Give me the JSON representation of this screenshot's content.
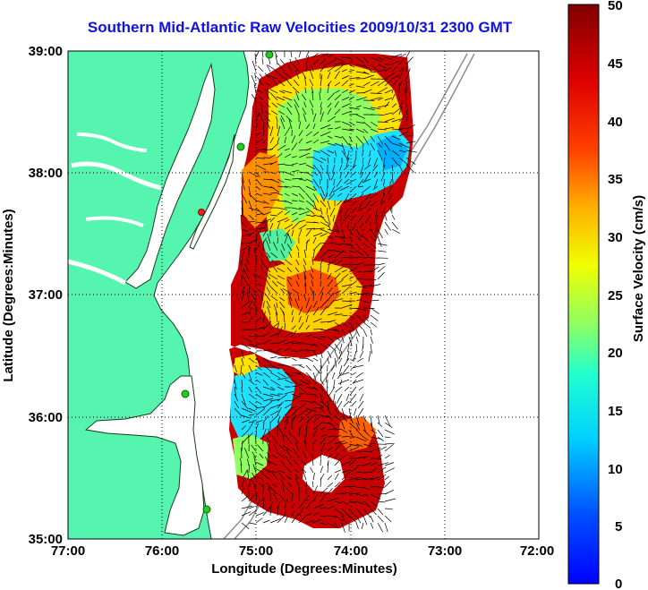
{
  "title": "Southern Mid-Atlantic Raw Velocities 2009/10/31 2300 GMT",
  "axes": {
    "xlabel": "Longitude (Degrees:Minutes)",
    "ylabel": "Latitude (Degrees:Minutes)",
    "x_ticks": [
      "77:00",
      "76:00",
      "75:00",
      "74:00",
      "73:00",
      "72:00"
    ],
    "y_ticks": [
      "39:00",
      "38:00",
      "37:00",
      "36:00",
      "35:00"
    ],
    "xlim": [
      -77,
      -72
    ],
    "ylim": [
      35,
      39
    ],
    "grid": "dotted"
  },
  "colorbar": {
    "label": "Surface Velocity (cm/s)",
    "ticks": [
      "50",
      "45",
      "40",
      "35",
      "30",
      "25",
      "20",
      "15",
      "10",
      "5",
      "0"
    ],
    "range": [
      0,
      50
    ],
    "colormap": "jet"
  },
  "colors": {
    "land": "#55f5b0",
    "title": "#1010e8",
    "station_green": "#22cc22",
    "station_red": "#ee2222",
    "bathymetry": "#888888"
  }
}
